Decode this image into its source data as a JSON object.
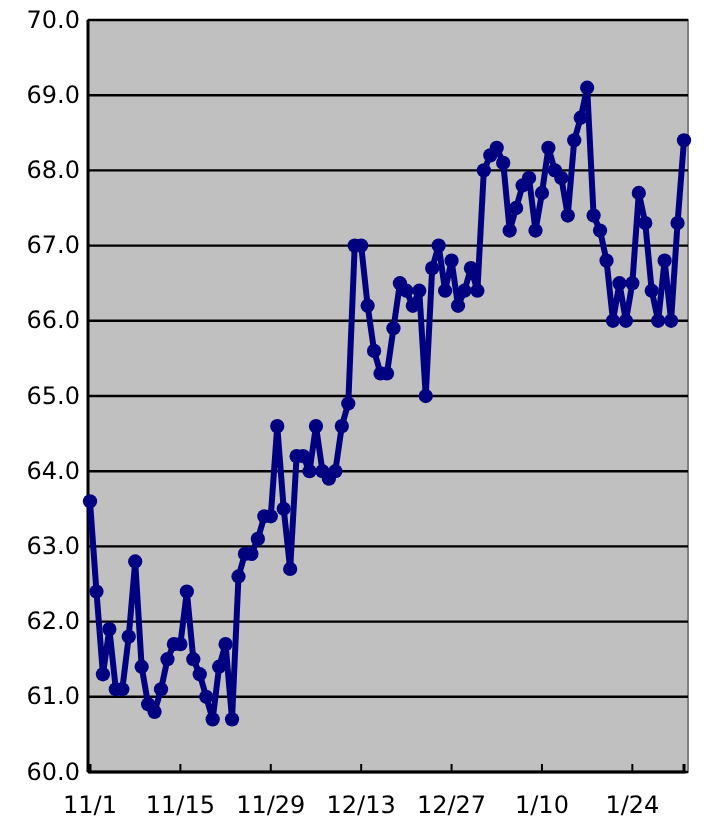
{
  "chart_data": {
    "type": "line",
    "categories": [
      "11/1",
      null,
      null,
      null,
      null,
      null,
      null,
      null,
      null,
      null,
      null,
      null,
      null,
      null,
      "11/15",
      null,
      null,
      null,
      null,
      null,
      null,
      null,
      null,
      null,
      null,
      null,
      null,
      null,
      "11/29",
      null,
      null,
      null,
      null,
      null,
      null,
      null,
      null,
      null,
      null,
      null,
      null,
      null,
      "12/13",
      null,
      null,
      null,
      null,
      null,
      null,
      null,
      null,
      null,
      null,
      null,
      null,
      null,
      "12/27",
      null,
      null,
      null,
      null,
      null,
      null,
      null,
      null,
      null,
      null,
      null,
      null,
      null,
      "1/10",
      null,
      null,
      null,
      null,
      null,
      null,
      null,
      null,
      null,
      null,
      null,
      null,
      null,
      "1/24",
      null,
      null,
      null,
      null,
      null,
      null,
      null,
      null
    ],
    "series": [
      {
        "color": "#000080",
        "values": [
          63.6,
          62.4,
          61.3,
          61.9,
          61.1,
          61.1,
          61.8,
          62.8,
          61.4,
          60.9,
          60.8,
          61.1,
          61.5,
          61.7,
          61.7,
          62.4,
          61.5,
          61.3,
          61.0,
          60.7,
          61.4,
          61.7,
          60.7,
          62.6,
          62.9,
          62.9,
          63.1,
          63.4,
          63.4,
          64.6,
          63.5,
          62.7,
          64.2,
          64.2,
          64.0,
          64.6,
          64.0,
          63.9,
          64.0,
          64.6,
          64.9,
          67.0,
          67.0,
          66.2,
          65.6,
          65.3,
          65.3,
          65.9,
          66.5,
          66.4,
          66.2,
          66.4,
          65.0,
          66.7,
          67.0,
          66.4,
          66.8,
          66.2,
          66.4,
          66.7,
          66.4,
          68.0,
          68.2,
          68.3,
          68.1,
          67.2,
          67.5,
          67.8,
          67.9,
          67.2,
          67.7,
          68.3,
          68.0,
          67.9,
          67.4,
          68.4,
          68.7,
          69.1,
          67.4,
          67.2,
          66.8,
          66.0,
          66.5,
          66.0,
          66.5,
          67.7,
          67.3,
          66.4,
          66.0,
          66.8,
          66.0,
          67.3,
          68.4
        ]
      }
    ],
    "ylim": [
      60,
      70
    ],
    "yticks": [
      {
        "value": 60,
        "label": "60.0"
      },
      {
        "value": 61,
        "label": "61.0"
      },
      {
        "value": 62,
        "label": "62.0"
      },
      {
        "value": 63,
        "label": "63.0"
      },
      {
        "value": 64,
        "label": "64.0"
      },
      {
        "value": 65,
        "label": "65.0"
      },
      {
        "value": 66,
        "label": "66.0"
      },
      {
        "value": 67,
        "label": "67.0"
      },
      {
        "value": 68,
        "label": "68.0"
      },
      {
        "value": 69,
        "label": "69.0"
      },
      {
        "value": 70,
        "label": "70.0"
      }
    ],
    "grid": "y",
    "marker": "circle",
    "line_style": "solid"
  }
}
